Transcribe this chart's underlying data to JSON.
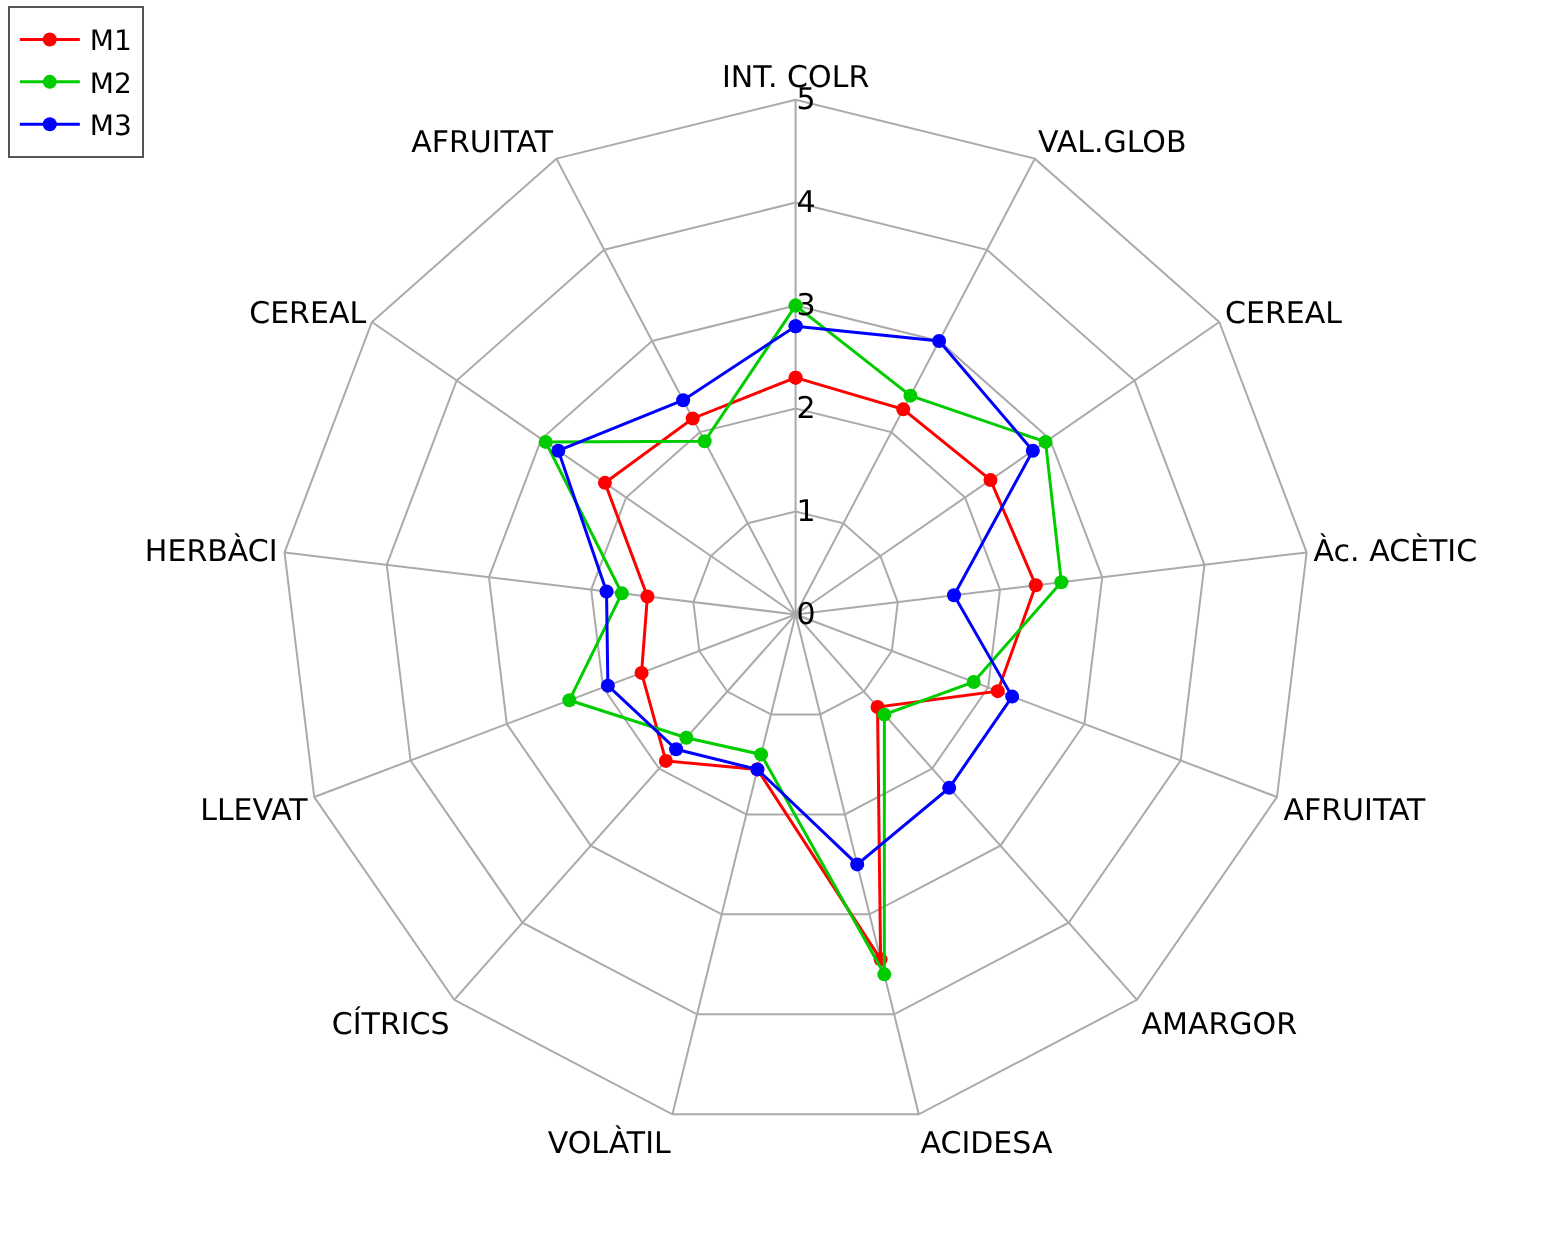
{
  "chart_data": {
    "type": "radar",
    "categories": [
      "INT. COLR",
      "VAL.GLOB",
      "CEREAL",
      "Àc. ACÈTIC",
      "AFRUITAT",
      "AMARGOR",
      "ACIDESA",
      "VOLÀTIL",
      "CÍTRICS",
      "LLEVAT",
      "HERBÀCI",
      "CEREAL",
      "AFRUITAT"
    ],
    "series": [
      {
        "name": "M1",
        "color": "#ff0000",
        "values": [
          2.3,
          2.25,
          2.3,
          2.35,
          2.1,
          1.2,
          3.45,
          1.55,
          1.9,
          1.6,
          1.45,
          2.25,
          2.15
        ]
      },
      {
        "name": "M2",
        "color": "#00cc00",
        "values": [
          3.0,
          2.4,
          2.95,
          2.6,
          1.85,
          1.3,
          3.6,
          1.4,
          1.6,
          2.35,
          1.7,
          2.95,
          1.9
        ]
      },
      {
        "name": "M3",
        "color": "#0000ff",
        "values": [
          2.8,
          3.0,
          2.8,
          1.55,
          2.25,
          2.25,
          2.5,
          1.55,
          1.75,
          1.95,
          1.85,
          2.8,
          2.35
        ]
      }
    ],
    "ylim": [
      0,
      5
    ],
    "yticks": [
      0,
      1,
      2,
      3,
      4,
      5
    ],
    "grid": true,
    "legend": "top left",
    "marker": "circle",
    "line_style": "solid"
  }
}
